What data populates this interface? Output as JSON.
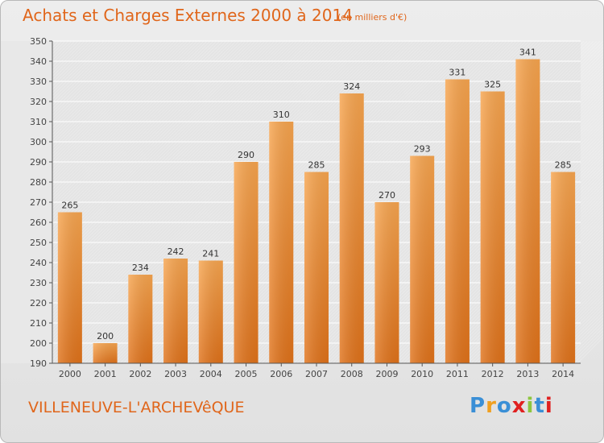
{
  "header": {
    "title": "Achats et Charges Externes 2000 à 2014",
    "subtitle": "(en milliers d'€)"
  },
  "footer": {
    "place": "VILLENEUVE-L'ARCHEVêQUE",
    "logo_text": "Proxiti",
    "logo_colors": [
      "#3a8fd6",
      "#f0a020",
      "#3a8fd6",
      "#e02020",
      "#8dc63f",
      "#3a8fd6",
      "#e02020"
    ]
  },
  "colors": {
    "bar_top": "#f7a54f",
    "bar_bottom": "#e0721a",
    "axis": "#555555",
    "grid": "#ffffff",
    "accent": "#e0661b"
  },
  "chart_data": {
    "type": "bar",
    "categories": [
      "2000",
      "2001",
      "2002",
      "2003",
      "2004",
      "2005",
      "2006",
      "2007",
      "2008",
      "2009",
      "2010",
      "2011",
      "2012",
      "2013",
      "2014"
    ],
    "values": [
      265,
      200,
      234,
      242,
      241,
      290,
      310,
      285,
      324,
      270,
      293,
      331,
      325,
      341,
      285
    ],
    "title": "Achats et Charges Externes 2000 à 2014",
    "xlabel": "",
    "ylabel": "",
    "ylim": [
      190,
      350
    ],
    "yticks": [
      190,
      200,
      210,
      220,
      230,
      240,
      250,
      260,
      270,
      280,
      290,
      300,
      310,
      320,
      330,
      340,
      350
    ],
    "grid": true,
    "data_labels": true
  }
}
